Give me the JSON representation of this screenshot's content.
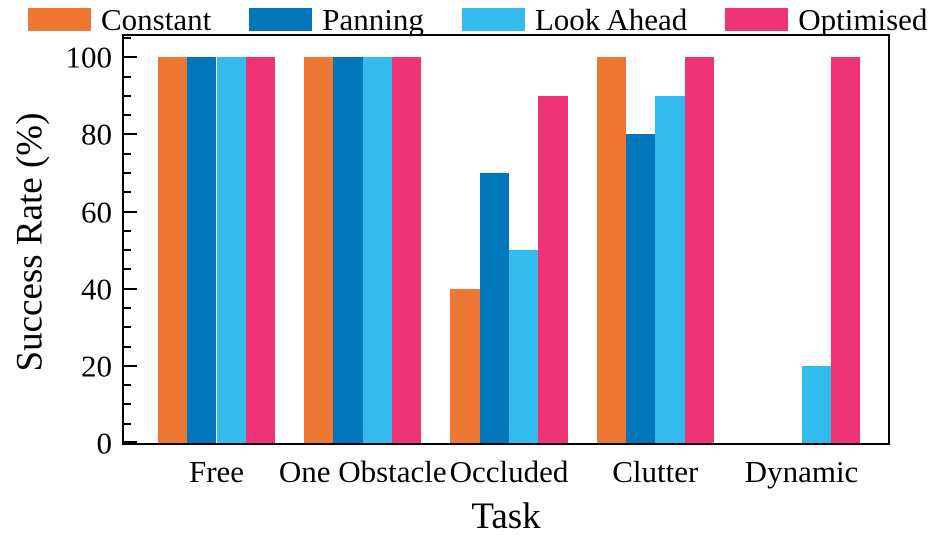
{
  "chart_data": {
    "type": "bar",
    "categories": [
      "Free",
      "One Obstacle",
      "Occluded",
      "Clutter",
      "Dynamic"
    ],
    "series": [
      {
        "name": "Constant",
        "color": "#EE7733",
        "values": [
          100,
          100,
          40,
          100,
          0
        ]
      },
      {
        "name": "Panning",
        "color": "#0077BB",
        "values": [
          100,
          100,
          70,
          80,
          0
        ]
      },
      {
        "name": "Look Ahead",
        "color": "#33BBEE",
        "values": [
          100,
          100,
          50,
          90,
          20
        ]
      },
      {
        "name": "Optimised",
        "color": "#EE3377",
        "values": [
          100,
          100,
          90,
          100,
          100
        ]
      }
    ],
    "xlabel": "Task",
    "ylabel": "Success Rate (%)",
    "ylim": [
      0,
      105.5
    ],
    "yticks_major": [
      0,
      20,
      40,
      60,
      80,
      100
    ],
    "ytick_minor_step": 5,
    "legend_position": "top",
    "grid": false,
    "frame_color": "#000000",
    "background_color": "#ffffff"
  }
}
